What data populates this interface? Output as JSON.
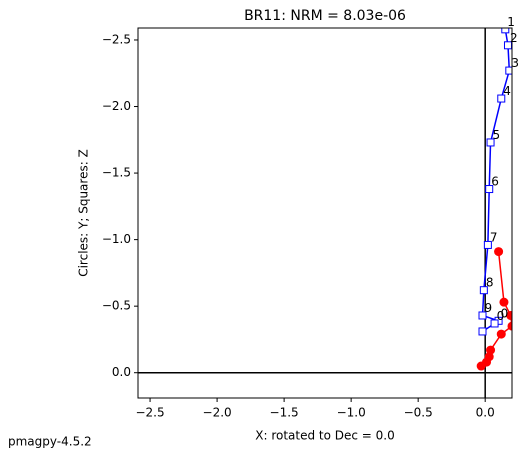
{
  "chart_data": {
    "type": "zijderveld",
    "title": "BR11: NRM =  8.03e-06",
    "xlabel": "X: rotated to Dec =     0.0",
    "ylabel": "Circles: Y; Squares: Z",
    "footer": "pmagpy-4.5.2",
    "xlim": [
      -2.59,
      0.2
    ],
    "ylim": [
      0.19,
      -2.59
    ],
    "xticks": [
      {
        "value": -2.5,
        "label": "−2.5"
      },
      {
        "value": -2.0,
        "label": "−2.0"
      },
      {
        "value": -1.5,
        "label": "−1.5"
      },
      {
        "value": -1.0,
        "label": "−1.0"
      },
      {
        "value": -0.5,
        "label": "−0.5"
      },
      {
        "value": 0,
        "label": "0.0"
      }
    ],
    "yticks": [
      {
        "value": -2.5,
        "label": "−2.5"
      },
      {
        "value": -2.0,
        "label": "−2.0"
      },
      {
        "value": -1.5,
        "label": "−1.5"
      },
      {
        "value": -1.0,
        "label": "−1.0"
      },
      {
        "value": -0.5,
        "label": "−0.5"
      },
      {
        "value": 0,
        "label": "0.0"
      }
    ],
    "series": [
      {
        "marker": "square",
        "color": "#0000ff",
        "x": [
          0.15,
          0.17,
          0.18,
          0.12,
          0.04,
          0.03,
          0.02,
          -0.01,
          -0.02,
          0.1,
          0.07,
          -0.02
        ],
        "values": [
          -2.58,
          -2.46,
          -2.27,
          -2.06,
          -1.73,
          -1.38,
          -0.96,
          -0.62,
          -0.43,
          -0.39,
          -0.37,
          -0.31
        ],
        "point_labels": [
          "1",
          "2",
          "3",
          "4",
          "5",
          "6",
          "7",
          "8",
          "9",
          "0",
          "0",
          null
        ]
      },
      {
        "marker": "circle",
        "color": "#ff0000",
        "x": [
          0.1,
          0.14,
          0.19,
          0.2,
          0.12,
          0.04,
          0.03,
          0.01,
          -0.03
        ],
        "values": [
          -0.91,
          -0.53,
          -0.43,
          -0.35,
          -0.29,
          -0.17,
          -0.12,
          -0.08,
          -0.05
        ]
      }
    ]
  }
}
